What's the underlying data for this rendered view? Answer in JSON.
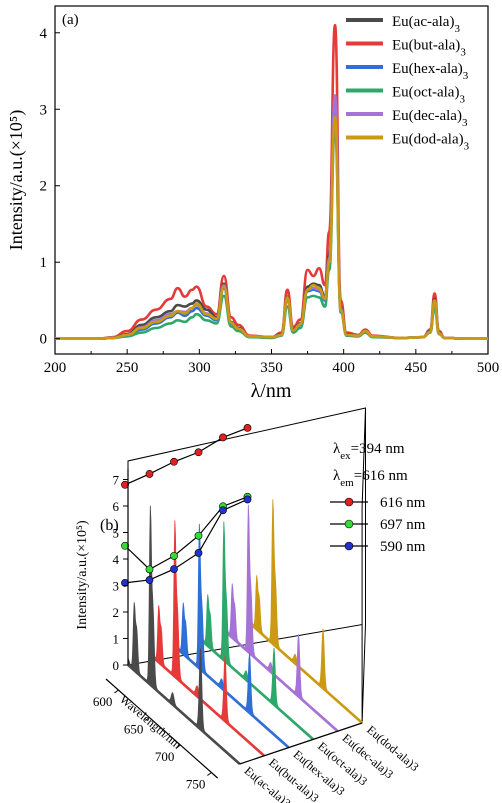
{
  "colors": {
    "ac": "#4a4a4a",
    "but": "#e63a3a",
    "hex": "#2f6fd6",
    "oct": "#2ea86a",
    "dec": "#a772d6",
    "dod": "#cc9a12",
    "c616": "#e22020",
    "c697": "#33dd33",
    "c590": "#2233cc"
  },
  "chart_data": [
    {
      "panel": "(a)",
      "type": "line",
      "xlabel": "λ/nm",
      "ylabel": "Intensity/a.u.(×10⁵)",
      "xlim": [
        200,
        500
      ],
      "ylim": [
        -0.2,
        4.35
      ],
      "xticks": [
        "200",
        "250",
        "300",
        "350",
        "400",
        "450",
        "500"
      ],
      "yticks": [
        "0",
        "1",
        "2",
        "3",
        "4"
      ],
      "legend_position": "top-right",
      "legend": [
        {
          "label": "Eu(ac-ala)",
          "sub": "3",
          "key": "ac"
        },
        {
          "label": "Eu(but-ala)",
          "sub": "3",
          "key": "but"
        },
        {
          "label": "Eu(hex-ala)",
          "sub": "3",
          "key": "hex"
        },
        {
          "label": "Eu(oct-ala)",
          "sub": "3",
          "key": "oct"
        },
        {
          "label": "Eu(dec-ala)",
          "sub": "3",
          "key": "dec"
        },
        {
          "label": "Eu(dod-ala)",
          "sub": "3",
          "key": "dod"
        }
      ],
      "x": [
        200,
        230,
        240,
        250,
        260,
        270,
        280,
        285,
        290,
        295,
        298,
        305,
        312,
        317,
        322,
        327,
        335,
        350,
        357,
        361,
        365,
        370,
        375,
        379,
        383,
        387,
        390,
        394,
        398,
        402,
        410,
        415,
        420,
        440,
        455,
        460,
        463,
        466,
        470,
        485,
        500
      ],
      "series": [
        {
          "key": "but",
          "values": [
            0,
            0,
            0.02,
            0.1,
            0.25,
            0.38,
            0.52,
            0.66,
            0.55,
            0.64,
            0.68,
            0.42,
            0.32,
            0.82,
            0.28,
            0.18,
            0.04,
            0.02,
            0.08,
            0.64,
            0.15,
            0.25,
            0.9,
            0.82,
            0.92,
            0.7,
            1.4,
            4.1,
            0.5,
            0.08,
            0.05,
            0.12,
            0.04,
            0.01,
            0.02,
            0.12,
            0.59,
            0.1,
            0.01,
            0,
            0
          ]
        },
        {
          "key": "ac",
          "values": [
            0,
            0,
            0.01,
            0.06,
            0.18,
            0.28,
            0.36,
            0.44,
            0.42,
            0.46,
            0.5,
            0.38,
            0.28,
            0.72,
            0.22,
            0.14,
            0.03,
            0.02,
            0.06,
            0.55,
            0.12,
            0.2,
            0.68,
            0.72,
            0.7,
            0.55,
            1.1,
            3.0,
            0.4,
            0.06,
            0.04,
            0.1,
            0.03,
            0.01,
            0.02,
            0.1,
            0.52,
            0.08,
            0.01,
            0,
            0
          ]
        },
        {
          "key": "hex",
          "values": [
            0,
            0,
            0.01,
            0.04,
            0.12,
            0.2,
            0.28,
            0.34,
            0.3,
            0.36,
            0.4,
            0.3,
            0.24,
            0.66,
            0.2,
            0.12,
            0.03,
            0.02,
            0.05,
            0.5,
            0.1,
            0.18,
            0.62,
            0.64,
            0.62,
            0.5,
            1.0,
            3.15,
            0.38,
            0.05,
            0.04,
            0.09,
            0.03,
            0.01,
            0.02,
            0.09,
            0.48,
            0.07,
            0.01,
            0,
            0
          ]
        },
        {
          "key": "oct",
          "values": [
            0,
            0,
            0.01,
            0.03,
            0.08,
            0.14,
            0.2,
            0.24,
            0.22,
            0.28,
            0.32,
            0.24,
            0.2,
            0.56,
            0.16,
            0.1,
            0.02,
            0.01,
            0.04,
            0.42,
            0.08,
            0.14,
            0.54,
            0.56,
            0.54,
            0.42,
            0.9,
            2.75,
            0.34,
            0.04,
            0.03,
            0.08,
            0.02,
            0.01,
            0.02,
            0.08,
            0.4,
            0.06,
            0.01,
            0,
            0
          ]
        },
        {
          "key": "dec",
          "values": [
            0,
            0,
            0.01,
            0.05,
            0.15,
            0.24,
            0.32,
            0.36,
            0.35,
            0.4,
            0.44,
            0.33,
            0.26,
            0.7,
            0.21,
            0.13,
            0.03,
            0.02,
            0.05,
            0.52,
            0.11,
            0.19,
            0.64,
            0.66,
            0.64,
            0.52,
            1.05,
            3.18,
            0.39,
            0.05,
            0.04,
            0.1,
            0.03,
            0.01,
            0.02,
            0.09,
            0.5,
            0.07,
            0.01,
            0,
            0
          ]
        },
        {
          "key": "dod",
          "values": [
            0,
            0,
            0.01,
            0.05,
            0.14,
            0.22,
            0.3,
            0.36,
            0.33,
            0.4,
            0.46,
            0.32,
            0.26,
            0.68,
            0.21,
            0.13,
            0.03,
            0.02,
            0.05,
            0.54,
            0.11,
            0.19,
            0.64,
            0.7,
            0.66,
            0.52,
            1.0,
            2.9,
            0.37,
            0.05,
            0.04,
            0.1,
            0.03,
            0.01,
            0.02,
            0.09,
            0.5,
            0.07,
            0.01,
            0,
            0
          ]
        }
      ]
    },
    {
      "panel": "(b)",
      "type": "line",
      "zlabel": "Intensity/a.u.(×10⁵)",
      "xlabel": "Wavelength/nm",
      "zticks": [
        "0",
        "1",
        "2",
        "3",
        "4",
        "5",
        "6",
        "7"
      ],
      "xticks": [
        "600",
        "650",
        "700",
        "750"
      ],
      "annotations": [
        {
          "symbol": "λ",
          "sub": "ex",
          "text": "=394 nm"
        },
        {
          "symbol": "λ",
          "sub": "em",
          "text": "=616 nm"
        }
      ],
      "legend": [
        {
          "label": "616 nm",
          "key": "c616"
        },
        {
          "label": "697 nm",
          "key": "c697"
        },
        {
          "label": "590 nm",
          "key": "c590"
        }
      ],
      "samples": [
        {
          "label": "Eu(ac-ala)3",
          "key": "ac"
        },
        {
          "label": "Eu(but-ala)3",
          "key": "but"
        },
        {
          "label": "Eu(hex-ala)3",
          "key": "hex"
        },
        {
          "label": "Eu(oct-ala)3",
          "key": "oct"
        },
        {
          "label": "Eu(dec-ala)3",
          "key": "dec"
        },
        {
          "label": "Eu(dod-ala)3",
          "key": "dod"
        }
      ],
      "spectrum_peaks_nm": [
        580,
        590,
        594,
        616,
        620,
        652,
        697
      ],
      "peak_heights": [
        [
          0.2,
          2.4,
          1.6,
          6.2,
          3.0,
          0.4,
          3.0
        ],
        [
          0.15,
          2.0,
          1.3,
          5.4,
          2.6,
          0.35,
          2.4
        ],
        [
          0.15,
          1.8,
          1.2,
          5.0,
          2.4,
          0.3,
          2.2
        ],
        [
          0.15,
          1.8,
          1.2,
          4.8,
          2.3,
          0.3,
          2.1
        ],
        [
          0.15,
          1.9,
          1.25,
          5.1,
          2.4,
          0.3,
          2.3
        ],
        [
          0.15,
          1.9,
          1.25,
          5.0,
          2.4,
          0.3,
          2.2
        ]
      ],
      "trend_616": [
        6.8,
        6.9,
        7.05,
        7.1,
        7.35,
        7.4
      ],
      "trend_697": [
        4.5,
        3.3,
        3.5,
        3.95,
        4.75,
        4.8
      ],
      "trend_590": [
        3.1,
        2.9,
        3.0,
        3.3,
        4.6,
        4.7
      ]
    }
  ]
}
